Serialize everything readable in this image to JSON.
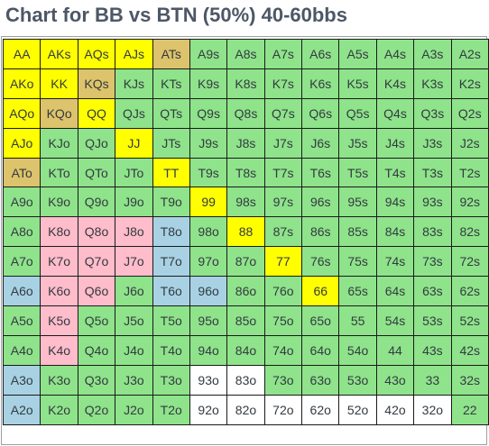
{
  "title": "Chart for BB vs BTN (50%) 40-60bbs",
  "colors": {
    "raise": "#ffff00",
    "mix": "#ddc36b",
    "call": "#8fe38b",
    "pink": "#ffbccb",
    "blue": "#a8d2e4",
    "fold": "#ffffff"
  },
  "grid": [
    [
      [
        "AA",
        "raise"
      ],
      [
        "AKs",
        "raise"
      ],
      [
        "AQs",
        "raise"
      ],
      [
        "AJs",
        "raise"
      ],
      [
        "ATs",
        "mix"
      ],
      [
        "A9s",
        "call"
      ],
      [
        "A8s",
        "call"
      ],
      [
        "A7s",
        "call"
      ],
      [
        "A6s",
        "call"
      ],
      [
        "A5s",
        "call"
      ],
      [
        "A4s",
        "call"
      ],
      [
        "A3s",
        "call"
      ],
      [
        "A2s",
        "call"
      ]
    ],
    [
      [
        "AKo",
        "raise"
      ],
      [
        "KK",
        "raise"
      ],
      [
        "KQs",
        "mix"
      ],
      [
        "KJs",
        "call"
      ],
      [
        "KTs",
        "call"
      ],
      [
        "K9s",
        "call"
      ],
      [
        "K8s",
        "call"
      ],
      [
        "K7s",
        "call"
      ],
      [
        "K6s",
        "call"
      ],
      [
        "K5s",
        "call"
      ],
      [
        "K4s",
        "call"
      ],
      [
        "K3s",
        "call"
      ],
      [
        "K2s",
        "call"
      ]
    ],
    [
      [
        "AQo",
        "raise"
      ],
      [
        "KQo",
        "mix"
      ],
      [
        "QQ",
        "raise"
      ],
      [
        "QJs",
        "call"
      ],
      [
        "QTs",
        "call"
      ],
      [
        "Q9s",
        "call"
      ],
      [
        "Q8s",
        "call"
      ],
      [
        "Q7s",
        "call"
      ],
      [
        "Q6s",
        "call"
      ],
      [
        "Q5s",
        "call"
      ],
      [
        "Q4s",
        "call"
      ],
      [
        "Q3s",
        "call"
      ],
      [
        "Q2s",
        "call"
      ]
    ],
    [
      [
        "AJo",
        "raise"
      ],
      [
        "KJo",
        "call"
      ],
      [
        "QJo",
        "call"
      ],
      [
        "JJ",
        "raise"
      ],
      [
        "JTs",
        "call"
      ],
      [
        "J9s",
        "call"
      ],
      [
        "J8s",
        "call"
      ],
      [
        "J7s",
        "call"
      ],
      [
        "J6s",
        "call"
      ],
      [
        "J5s",
        "call"
      ],
      [
        "J4s",
        "call"
      ],
      [
        "J3s",
        "call"
      ],
      [
        "J2s",
        "call"
      ]
    ],
    [
      [
        "ATo",
        "mix"
      ],
      [
        "KTo",
        "call"
      ],
      [
        "QTo",
        "call"
      ],
      [
        "JTo",
        "call"
      ],
      [
        "TT",
        "raise"
      ],
      [
        "T9s",
        "call"
      ],
      [
        "T8s",
        "call"
      ],
      [
        "T7s",
        "call"
      ],
      [
        "T6s",
        "call"
      ],
      [
        "T5s",
        "call"
      ],
      [
        "T4s",
        "call"
      ],
      [
        "T3s",
        "call"
      ],
      [
        "T2s",
        "call"
      ]
    ],
    [
      [
        "A9o",
        "call"
      ],
      [
        "K9o",
        "call"
      ],
      [
        "Q9o",
        "call"
      ],
      [
        "J9o",
        "call"
      ],
      [
        "T9o",
        "call"
      ],
      [
        "99",
        "raise"
      ],
      [
        "98s",
        "call"
      ],
      [
        "97s",
        "call"
      ],
      [
        "96s",
        "call"
      ],
      [
        "95s",
        "call"
      ],
      [
        "94s",
        "call"
      ],
      [
        "93s",
        "call"
      ],
      [
        "92s",
        "call"
      ]
    ],
    [
      [
        "A8o",
        "call"
      ],
      [
        "K8o",
        "pink"
      ],
      [
        "Q8o",
        "pink"
      ],
      [
        "J8o",
        "pink"
      ],
      [
        "T8o",
        "blue"
      ],
      [
        "98o",
        "call"
      ],
      [
        "88",
        "raise"
      ],
      [
        "87s",
        "call"
      ],
      [
        "86s",
        "call"
      ],
      [
        "85s",
        "call"
      ],
      [
        "84s",
        "call"
      ],
      [
        "83s",
        "call"
      ],
      [
        "82s",
        "call"
      ]
    ],
    [
      [
        "A7o",
        "call"
      ],
      [
        "K7o",
        "pink"
      ],
      [
        "Q7o",
        "pink"
      ],
      [
        "J7o",
        "pink"
      ],
      [
        "T7o",
        "blue"
      ],
      [
        "97o",
        "call"
      ],
      [
        "87o",
        "call"
      ],
      [
        "77",
        "raise"
      ],
      [
        "76s",
        "call"
      ],
      [
        "75s",
        "call"
      ],
      [
        "74s",
        "call"
      ],
      [
        "73s",
        "call"
      ],
      [
        "72s",
        "call"
      ]
    ],
    [
      [
        "A6o",
        "blue"
      ],
      [
        "K6o",
        "pink"
      ],
      [
        "Q6o",
        "pink"
      ],
      [
        "J6o",
        "call"
      ],
      [
        "T6o",
        "blue"
      ],
      [
        "96o",
        "blue"
      ],
      [
        "86o",
        "call"
      ],
      [
        "76o",
        "call"
      ],
      [
        "66",
        "raise"
      ],
      [
        "65s",
        "call"
      ],
      [
        "64s",
        "call"
      ],
      [
        "63s",
        "call"
      ],
      [
        "62s",
        "call"
      ]
    ],
    [
      [
        "A5o",
        "call"
      ],
      [
        "K5o",
        "pink"
      ],
      [
        "Q5o",
        "call"
      ],
      [
        "J5o",
        "call"
      ],
      [
        "T5o",
        "call"
      ],
      [
        "95o",
        "call"
      ],
      [
        "85o",
        "call"
      ],
      [
        "75o",
        "call"
      ],
      [
        "65o",
        "call"
      ],
      [
        "55",
        "call"
      ],
      [
        "54s",
        "call"
      ],
      [
        "53s",
        "call"
      ],
      [
        "52s",
        "call"
      ]
    ],
    [
      [
        "A4o",
        "call"
      ],
      [
        "K4o",
        "pink"
      ],
      [
        "Q4o",
        "call"
      ],
      [
        "J4o",
        "call"
      ],
      [
        "T4o",
        "call"
      ],
      [
        "94o",
        "call"
      ],
      [
        "84o",
        "call"
      ],
      [
        "74o",
        "call"
      ],
      [
        "64o",
        "call"
      ],
      [
        "54o",
        "call"
      ],
      [
        "44",
        "call"
      ],
      [
        "43s",
        "call"
      ],
      [
        "42s",
        "call"
      ]
    ],
    [
      [
        "A3o",
        "blue"
      ],
      [
        "K3o",
        "call"
      ],
      [
        "Q3o",
        "call"
      ],
      [
        "J3o",
        "call"
      ],
      [
        "T3o",
        "call"
      ],
      [
        "93o",
        "fold"
      ],
      [
        "83o",
        "fold"
      ],
      [
        "73o",
        "call"
      ],
      [
        "63o",
        "call"
      ],
      [
        "53o",
        "call"
      ],
      [
        "43o",
        "call"
      ],
      [
        "33",
        "call"
      ],
      [
        "32s",
        "call"
      ]
    ],
    [
      [
        "A2o",
        "blue"
      ],
      [
        "K2o",
        "call"
      ],
      [
        "Q2o",
        "call"
      ],
      [
        "J2o",
        "call"
      ],
      [
        "T2o",
        "call"
      ],
      [
        "92o",
        "fold"
      ],
      [
        "82o",
        "fold"
      ],
      [
        "72o",
        "fold"
      ],
      [
        "62o",
        "fold"
      ],
      [
        "52o",
        "fold"
      ],
      [
        "42o",
        "fold"
      ],
      [
        "32o",
        "fold"
      ],
      [
        "22",
        "call"
      ]
    ]
  ]
}
